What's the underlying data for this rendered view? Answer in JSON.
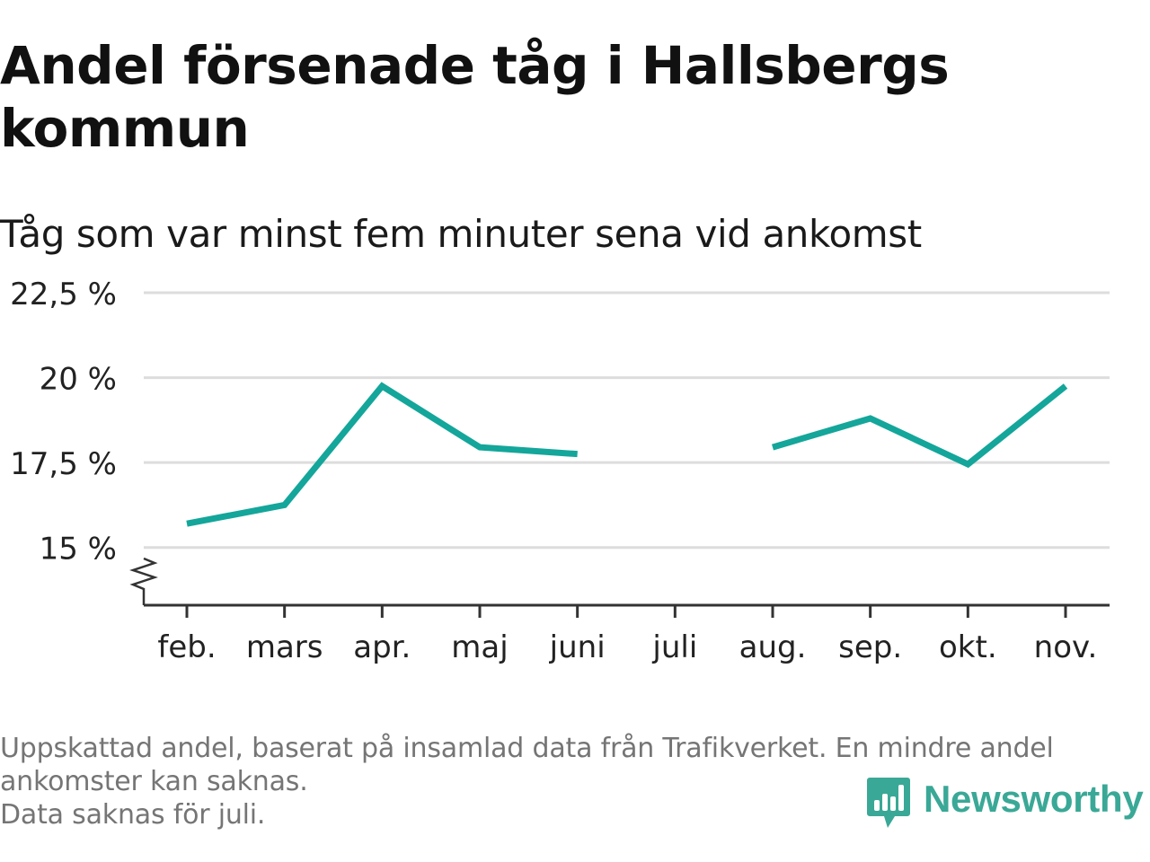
{
  "header": {
    "title": "Andel försenade tåg i Hallsbergs kommun",
    "subtitle": "Tåg som var minst fem minuter sena vid ankomst"
  },
  "footnotes": [
    "Uppskattad andel, baserat på insamlad data från Trafikverket. En mindre andel",
    "ankomster kan saknas.",
    "Data saknas för juli."
  ],
  "brand": {
    "name": "Newsworthy",
    "icon": "newsworthy-bar-chart-icon",
    "color": "#3aa896"
  },
  "chart_data": {
    "type": "line",
    "categories": [
      "feb.",
      "mars",
      "apr.",
      "maj",
      "juni",
      "juli",
      "aug.",
      "sep.",
      "okt.",
      "nov."
    ],
    "series": [
      {
        "values": [
          15.7,
          16.25,
          19.75,
          17.95,
          17.75,
          null,
          17.95,
          18.8,
          17.45,
          19.75
        ],
        "color": "#14a69a"
      }
    ],
    "y_ticks": [
      15,
      17.5,
      20,
      22.5
    ],
    "y_tick_labels": [
      "15 %",
      "17,5 %",
      "20 %",
      "22,5 %"
    ],
    "ylim": [
      13.3,
      22.5
    ],
    "y_axis_break": true,
    "grid": true,
    "gridline_color": "#dddddd",
    "title": "Andel försenade tåg i Hallsbergs kommun",
    "subtitle": "Tåg som var minst fem minuter sena vid ankomst",
    "xlabel": "",
    "ylabel": ""
  }
}
